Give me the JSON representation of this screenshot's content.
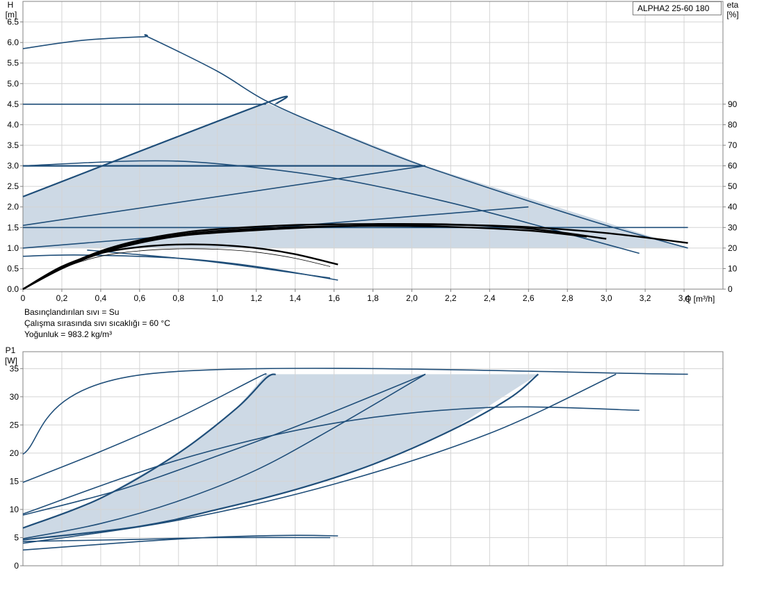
{
  "model_label": "ALPHA2 25-60 180",
  "info": {
    "line1": "Basınçlandırılan sıvı = Su",
    "line2": "Çalışma sırasında sıvı sıcaklığı = 60 °C",
    "line3": "Yoğunluk = 983.2 kg/m³"
  },
  "colors": {
    "curve": "#1f4e79",
    "region": "#cdd9e5",
    "efficiency": "#000000",
    "grid": "#d4d4d4"
  },
  "chart_data": [
    {
      "type": "line",
      "id": "head",
      "ylabel_top": "H",
      "ylabel_unit": "[m]",
      "y2label_top": "eta",
      "y2label_unit": "[%]",
      "xlabel": "Q [m³/h]",
      "xlim": [
        0,
        3.6
      ],
      "ylim": [
        0,
        7
      ],
      "y2lim": [
        0,
        90
      ],
      "x_ticks": [
        "0",
        "0,2",
        "0,4",
        "0,6",
        "0,8",
        "1,0",
        "1,2",
        "1,4",
        "1,6",
        "1,8",
        "2,0",
        "2,2",
        "2,4",
        "2,6",
        "2,8",
        "3,0",
        "3,2",
        "3,4"
      ],
      "y_ticks": [
        "0.0",
        "0.5",
        "1.0",
        "1.5",
        "2.0",
        "2.5",
        "3.0",
        "3.5",
        "4.0",
        "4.5",
        "5.0",
        "5.5",
        "6.0",
        "6.5"
      ],
      "y2_ticks": [
        "0",
        "10",
        "20",
        "30",
        "40",
        "50",
        "60",
        "70",
        "80",
        "90"
      ],
      "grid": true,
      "region": [
        [
          0,
          2.25
        ],
        [
          1.25,
          4.53
        ],
        [
          2.07,
          3.0
        ],
        [
          3.42,
          1.0
        ],
        [
          0,
          1.0
        ]
      ],
      "series": [
        {
          "style": "blue",
          "x": [
            0,
            0.3,
            0.62,
            0.65,
            1.0,
            1.25,
            1.6,
            2.0,
            2.5,
            3.0,
            3.42
          ],
          "y": [
            5.85,
            6.05,
            6.14,
            6.12,
            5.3,
            4.58,
            3.85,
            3.1,
            2.3,
            1.55,
            1.0
          ]
        },
        {
          "style": "blue",
          "x": [
            0,
            1.25
          ],
          "y": [
            4.5,
            4.5
          ]
        },
        {
          "style": "blue-thick",
          "x": [
            0,
            1.25,
            1.3
          ],
          "y": [
            2.25,
            4.53,
            4.5
          ]
        },
        {
          "style": "blue",
          "x": [
            0,
            0.6,
            1.0,
            1.6,
            2.2,
            2.8,
            3.17
          ],
          "y": [
            3.0,
            3.12,
            3.05,
            2.7,
            2.1,
            1.35,
            0.87
          ]
        },
        {
          "style": "blue-thick",
          "x": [
            0,
            2.07
          ],
          "y": [
            3.0,
            3.0
          ]
        },
        {
          "style": "blue",
          "x": [
            0,
            2.07
          ],
          "y": [
            1.55,
            3.0
          ]
        },
        {
          "style": "blue",
          "x": [
            0,
            2.75
          ],
          "y": [
            1.5,
            1.5
          ]
        },
        {
          "style": "blue",
          "x": [
            0,
            2.6
          ],
          "y": [
            1.0,
            2.0
          ]
        },
        {
          "style": "blue",
          "x": [
            0,
            3.42
          ],
          "y": [
            1.5,
            1.5
          ]
        },
        {
          "style": "blue",
          "x": [
            0,
            0.3,
            0.8,
            1.2,
            1.62
          ],
          "y": [
            0.8,
            0.83,
            0.75,
            0.55,
            0.22
          ]
        },
        {
          "style": "blue",
          "x": [
            0.33,
            0.5,
            1.0,
            1.58
          ],
          "y": [
            0.95,
            0.88,
            0.65,
            0.27
          ]
        }
      ],
      "efficiency_series": [
        {
          "style": "black",
          "x": [
            0,
            0.2,
            0.4,
            0.6,
            0.8,
            1.0,
            1.2,
            1.4,
            1.62
          ],
          "y": [
            0,
            11,
            17.5,
            20.5,
            21.7,
            21.5,
            20,
            17,
            12
          ]
        },
        {
          "style": "thin",
          "x": [
            0,
            0.2,
            0.4,
            0.6,
            0.8,
            1.0,
            1.2,
            1.4,
            1.58
          ],
          "y": [
            0,
            10,
            16,
            18.6,
            19.6,
            19.4,
            18,
            15,
            11
          ]
        },
        {
          "style": "black",
          "x": [
            0,
            0.2,
            0.4,
            0.6,
            0.8,
            1.0,
            1.4,
            1.8,
            2.2,
            2.6,
            3.0,
            3.42
          ],
          "y": [
            0,
            10,
            17.5,
            22.5,
            25.8,
            27.5,
            29.7,
            31,
            31.3,
            30.2,
            27.3,
            22.5
          ]
        },
        {
          "style": "black",
          "x": [
            0,
            0.2,
            0.4,
            0.6,
            0.8,
            1.0,
            1.4,
            1.8,
            2.2,
            2.6,
            3.0
          ],
          "y": [
            0,
            10.5,
            18.5,
            23.8,
            27.2,
            29.2,
            31.2,
            31.7,
            31.5,
            29.5,
            24.5
          ]
        },
        {
          "style": "black",
          "x": [
            0,
            0.2,
            0.4,
            0.6,
            0.8,
            1.0,
            1.4,
            1.8,
            2.2,
            2.6,
            2.9
          ],
          "y": [
            0,
            10.2,
            18,
            23.1,
            26.4,
            28.3,
            30.2,
            30.8,
            30.3,
            28.5,
            25.5
          ]
        }
      ]
    },
    {
      "type": "line",
      "id": "power",
      "ylabel_top": "P1",
      "ylabel_unit": "[W]",
      "xlim": [
        0,
        3.6
      ],
      "ylim": [
        0,
        38
      ],
      "y_ticks": [
        "0",
        "5",
        "10",
        "15",
        "20",
        "25",
        "30",
        "35"
      ],
      "grid": true,
      "region": [
        [
          0,
          6.7
        ],
        [
          0.4,
          12
        ],
        [
          0.8,
          20
        ],
        [
          1.1,
          28
        ],
        [
          1.25,
          34
        ],
        [
          2.65,
          34
        ],
        [
          2.2,
          24
        ],
        [
          1.8,
          18
        ],
        [
          1.4,
          13.5
        ],
        [
          1.0,
          10
        ],
        [
          0.6,
          7
        ],
        [
          0,
          4.6
        ]
      ],
      "series": [
        {
          "style": "blue",
          "x": [
            0,
            0.63,
            3.42
          ],
          "y": [
            19.8,
            34,
            34
          ]
        },
        {
          "style": "blue",
          "x": [
            0,
            0.4,
            0.8,
            1.2,
            1.25
          ],
          "y": [
            14.8,
            20.3,
            26.3,
            33.3,
            34
          ]
        },
        {
          "style": "blue-thick",
          "x": [
            0,
            0.4,
            0.8,
            1.1,
            1.25,
            1.3
          ],
          "y": [
            6.7,
            12,
            20,
            28,
            33.3,
            34
          ]
        },
        {
          "style": "blue",
          "x": [
            0,
            0.5,
            1.0,
            1.5,
            2.07
          ],
          "y": [
            9.0,
            13.5,
            19.5,
            26,
            34
          ]
        },
        {
          "style": "blue",
          "x": [
            0,
            0.4,
            0.8,
            1.2,
            1.6,
            2.07
          ],
          "y": [
            4.8,
            7.5,
            11.5,
            17,
            24.5,
            34
          ]
        },
        {
          "style": "blue",
          "x": [
            0,
            0.8,
            1.6,
            2.4,
            3.17
          ],
          "y": [
            9.2,
            18.8,
            25.3,
            28.1,
            27.6
          ]
        },
        {
          "style": "blue-thick",
          "x": [
            0,
            0.6,
            1.0,
            1.4,
            1.8,
            2.2,
            2.5,
            2.65
          ],
          "y": [
            4.6,
            7,
            10,
            13.5,
            18,
            24,
            29.7,
            34
          ]
        },
        {
          "style": "blue",
          "x": [
            0,
            0.8,
            1.6,
            2.4,
            3.05
          ],
          "y": [
            4.0,
            8.1,
            14.5,
            23.5,
            34
          ]
        },
        {
          "style": "blue",
          "x": [
            0,
            0.6,
            1.0,
            1.4,
            1.62
          ],
          "y": [
            2.8,
            4.3,
            5.1,
            5.4,
            5.3
          ]
        },
        {
          "style": "blue",
          "x": [
            0,
            0.6,
            1.0,
            1.58
          ],
          "y": [
            4.3,
            4.7,
            5.0,
            5.0
          ]
        }
      ]
    }
  ]
}
